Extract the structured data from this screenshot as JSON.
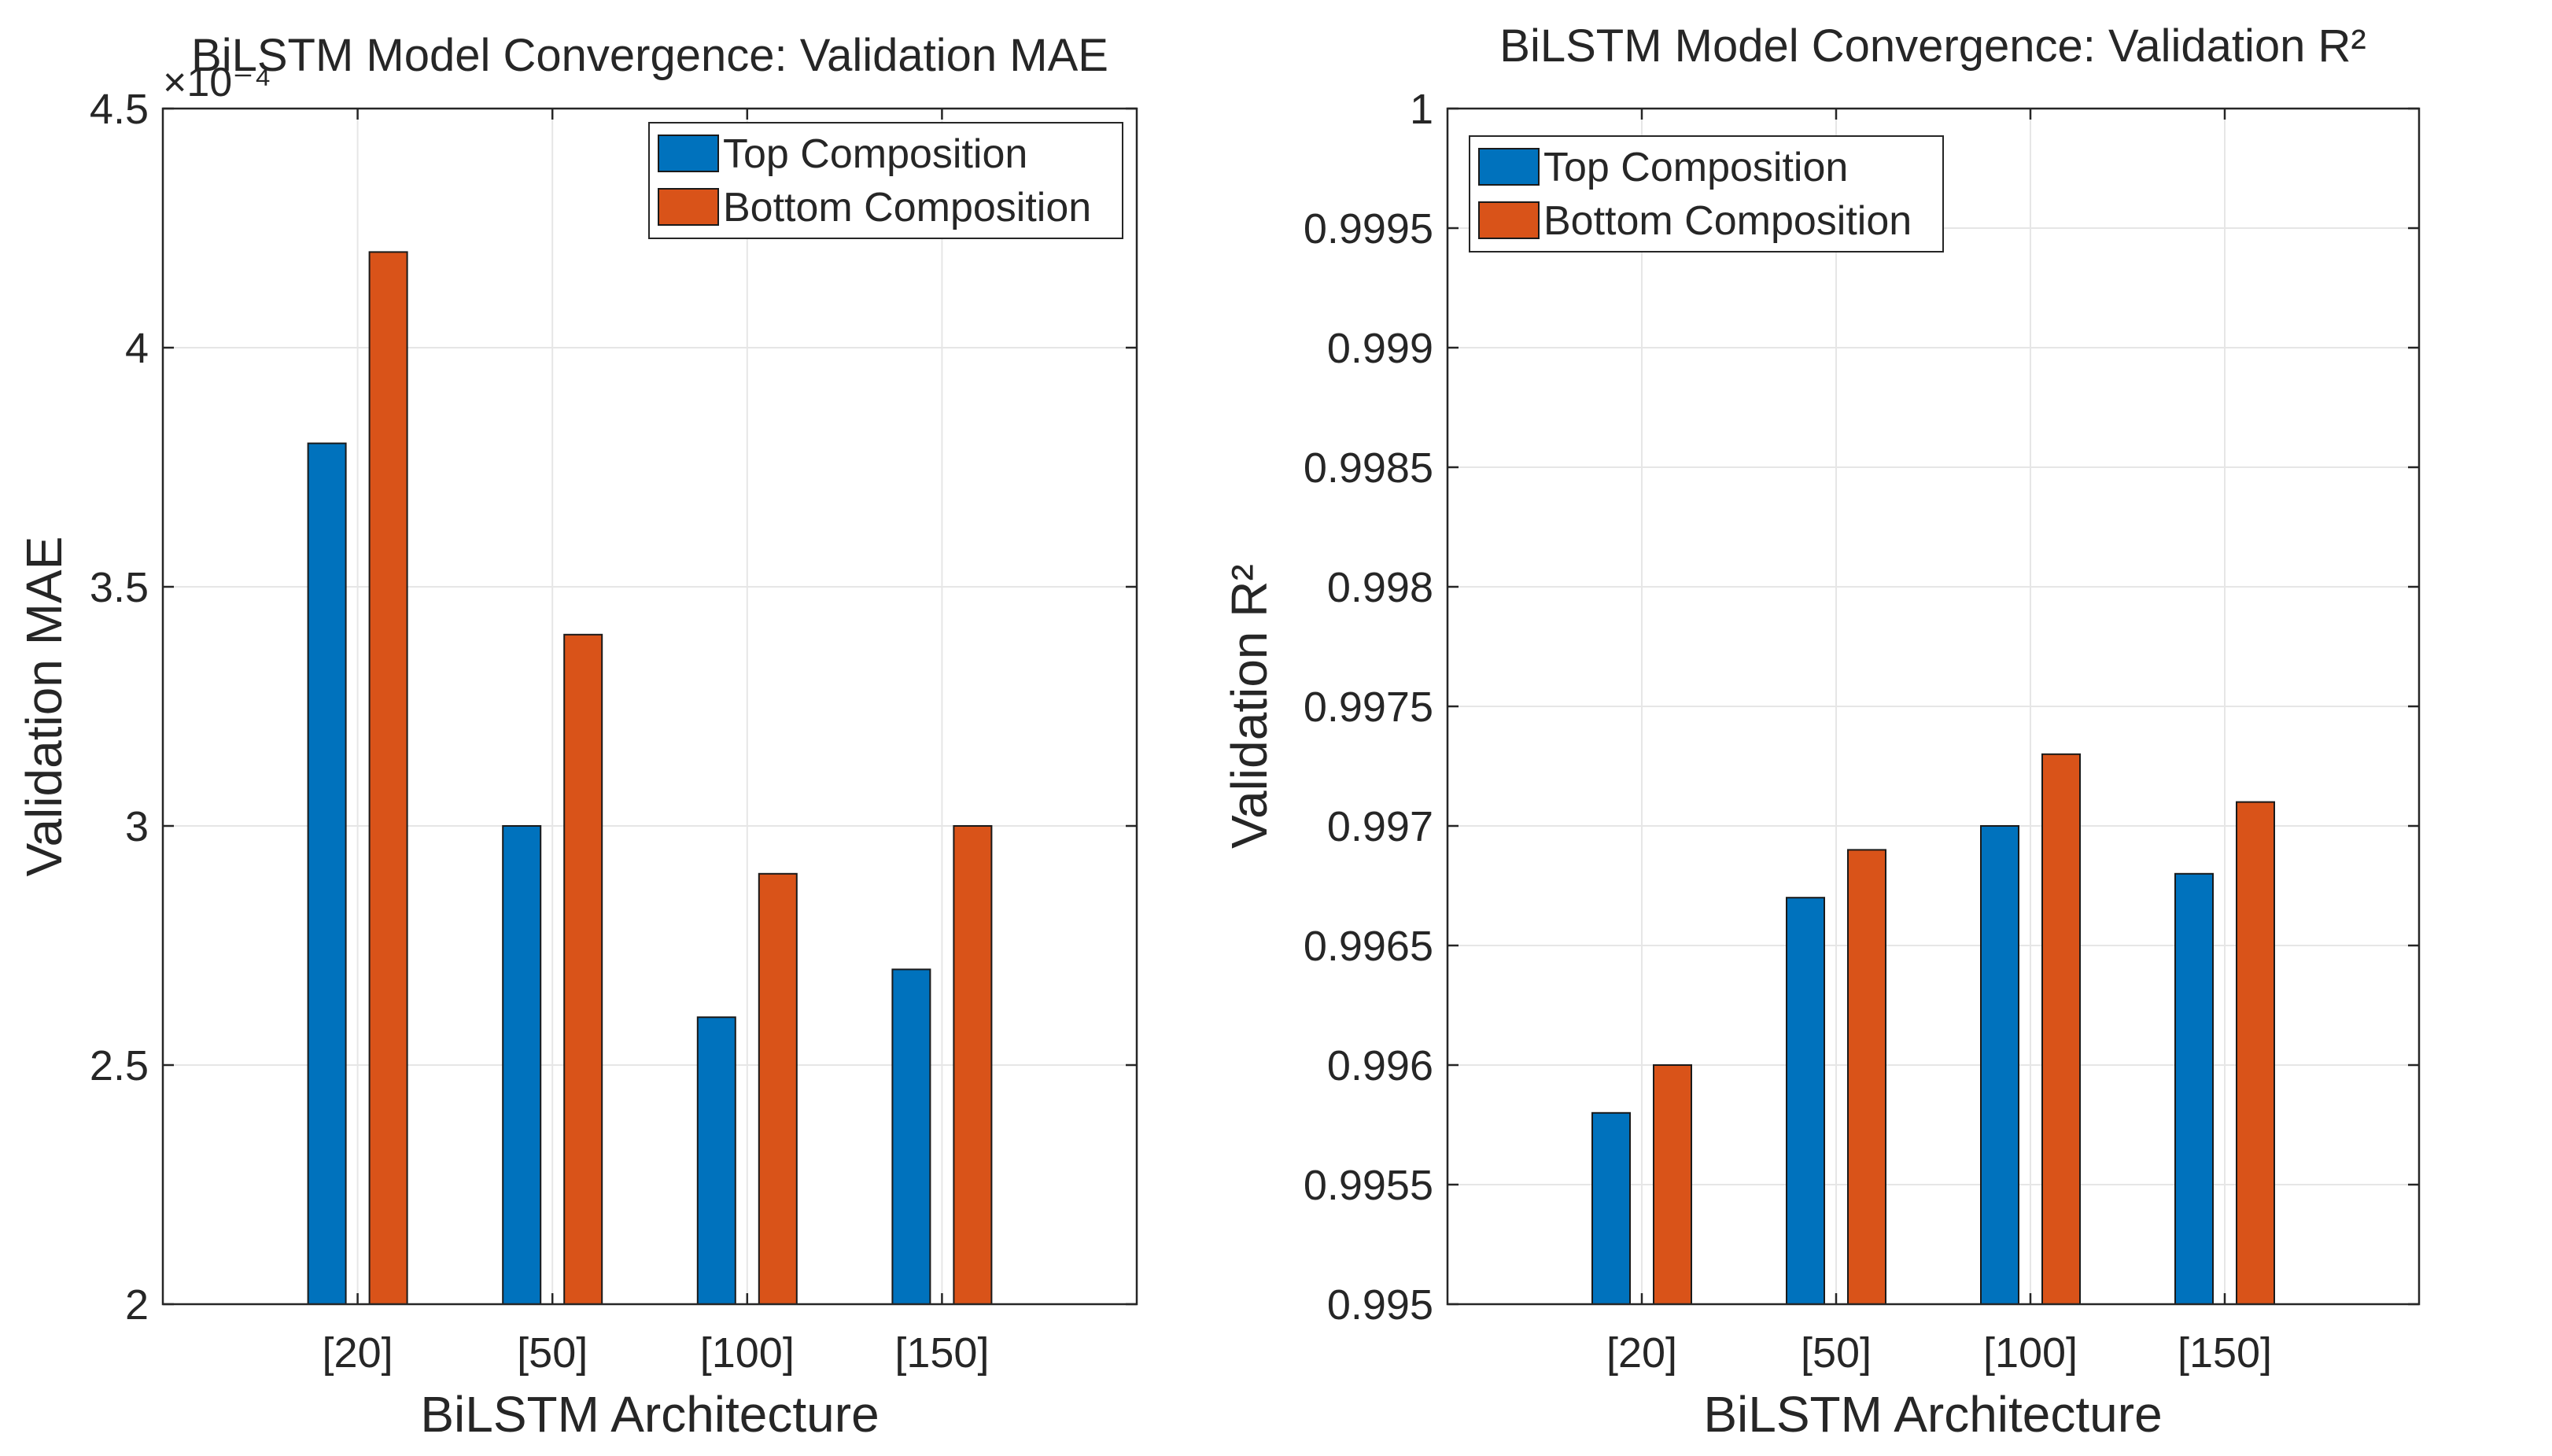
{
  "chart_data": [
    {
      "type": "bar",
      "title": "BiLSTM Model Convergence: Validation MAE",
      "xlabel": "BiLSTM Architecture",
      "ylabel": "Validation MAE",
      "exponent_label": "×10⁻⁴",
      "categories": [
        "[20]",
        "[50]",
        "[100]",
        "[150]"
      ],
      "series": [
        {
          "name": "Top Composition",
          "values": [
            3.8,
            3.0,
            2.6,
            2.7
          ],
          "color": "#0072BD"
        },
        {
          "name": "Bottom Composition",
          "values": [
            4.2,
            3.4,
            2.9,
            3.0
          ],
          "color": "#D95319"
        }
      ],
      "ylim": [
        2,
        4.5
      ],
      "yticks": [
        2,
        2.5,
        3,
        3.5,
        4,
        4.5
      ],
      "ytick_labels": [
        "2",
        "2.5",
        "3",
        "3.5",
        "4",
        "4.5"
      ],
      "grid": true,
      "legend_position": "top-right"
    },
    {
      "type": "bar",
      "title": "BiLSTM Model Convergence: Validation R²",
      "xlabel": "BiLSTM Architecture",
      "ylabel": "Validation R²",
      "categories": [
        "[20]",
        "[50]",
        "[100]",
        "[150]"
      ],
      "series": [
        {
          "name": "Top Composition",
          "values": [
            0.9958,
            0.9967,
            0.997,
            0.9968
          ],
          "color": "#0072BD"
        },
        {
          "name": "Bottom Composition",
          "values": [
            0.996,
            0.9969,
            0.9973,
            0.9971
          ],
          "color": "#D95319"
        }
      ],
      "ylim": [
        0.995,
        1
      ],
      "yticks": [
        0.995,
        0.9955,
        0.996,
        0.9965,
        0.997,
        0.9975,
        0.998,
        0.9985,
        0.999,
        0.9995,
        1
      ],
      "ytick_labels": [
        "0.995",
        "0.9955",
        "0.996",
        "0.9965",
        "0.997",
        "0.9975",
        "0.998",
        "0.9985",
        "0.999",
        "0.9995",
        "1"
      ],
      "grid": true,
      "legend_position": "top-left"
    }
  ]
}
